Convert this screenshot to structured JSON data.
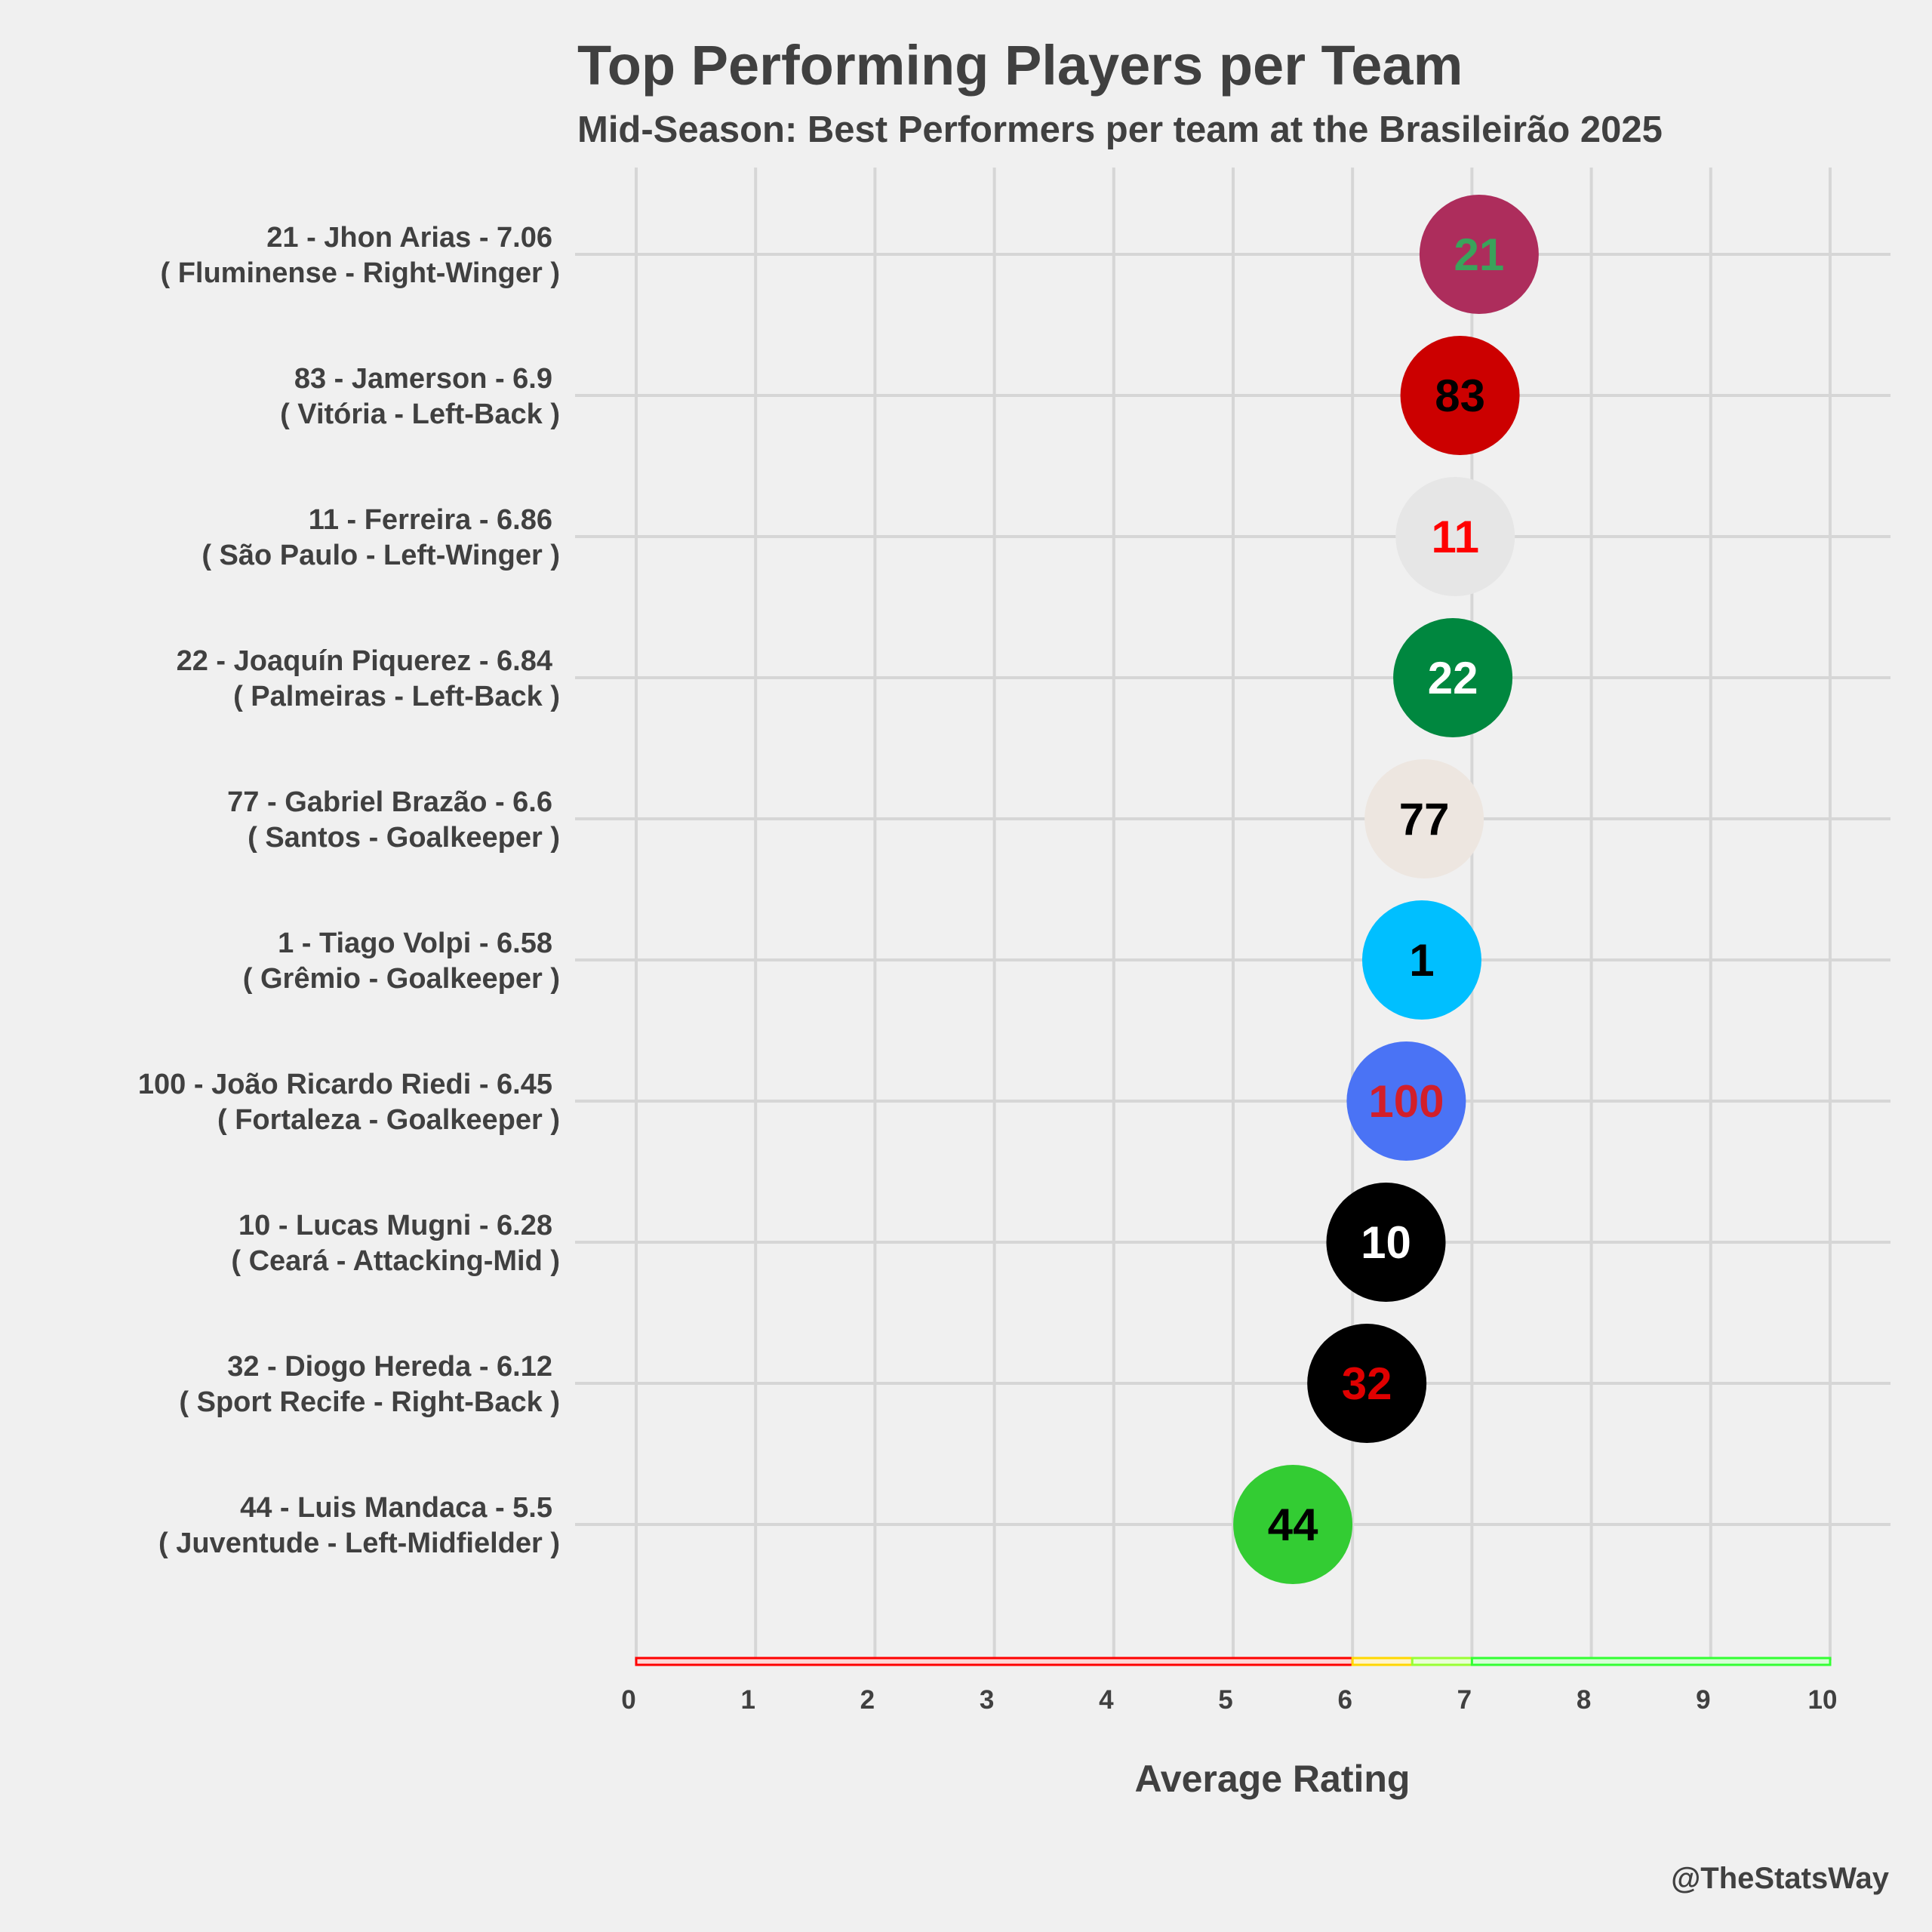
{
  "chart_data": {
    "type": "scatter",
    "title": "Top Performing Players per Team",
    "subtitle": "Mid-Season: Best Performers per team at the Brasileirão 2025",
    "xlabel": "Average Rating",
    "ylabel": "",
    "xlim": [
      0,
      10
    ],
    "xticks": [
      "0",
      "1",
      "2",
      "3",
      "4",
      "5",
      "6",
      "7",
      "8",
      "9",
      "10"
    ],
    "grid": true,
    "credit": "@TheStatsWay",
    "players": [
      {
        "number": "21",
        "line1": "21 - Jhon Arias - 7.06",
        "line2": "( Fluminense - Right-Winger )",
        "rating": 7.06,
        "color": "#ad2d5c",
        "text_color": "#3aa35b"
      },
      {
        "number": "83",
        "line1": "83 - Jamerson - 6.9",
        "line2": "( Vitória - Left-Back )",
        "rating": 6.9,
        "color": "#cc0000",
        "text_color": "#000000"
      },
      {
        "number": "11",
        "line1": "11 - Ferreira - 6.86",
        "line2": "( São Paulo - Left-Winger )",
        "rating": 6.86,
        "color": "#e6e6e6",
        "text_color": "#ff0000"
      },
      {
        "number": "22",
        "line1": "22 - Joaquín Piquerez - 6.84",
        "line2": "( Palmeiras - Left-Back )",
        "rating": 6.84,
        "color": "#00873f",
        "text_color": "#ffffff"
      },
      {
        "number": "77",
        "line1": "77 - Gabriel Brazão - 6.6",
        "line2": "( Santos - Goalkeeper )",
        "rating": 6.6,
        "color": "#ede6e0",
        "text_color": "#000000"
      },
      {
        "number": "1",
        "line1": "1 - Tiago Volpi - 6.58",
        "line2": "( Grêmio - Goalkeeper )",
        "rating": 6.58,
        "color": "#00bfff",
        "text_color": "#000000"
      },
      {
        "number": "100",
        "line1": "100 - João Ricardo Riedi - 6.45",
        "line2": "( Fortaleza - Goalkeeper )",
        "rating": 6.45,
        "color": "#4a73f5",
        "text_color": "#d21f2a"
      },
      {
        "number": "10",
        "line1": "10 - Lucas Mugni - 6.28",
        "line2": "( Ceará - Attacking-Mid )",
        "rating": 6.28,
        "color": "#000000",
        "text_color": "#ffffff"
      },
      {
        "number": "32",
        "line1": "32 - Diogo Hereda - 6.12",
        "line2": "( Sport Recife - Right-Back )",
        "rating": 6.12,
        "color": "#000000",
        "text_color": "#e00000"
      },
      {
        "number": "44",
        "line1": "44 - Luis Mandaca - 5.5",
        "line2": "( Juventude - Left-Midfielder )",
        "rating": 5.5,
        "color": "#33cc33",
        "text_color": "#000000"
      }
    ],
    "rating_bands": [
      {
        "from": 0,
        "to": 6,
        "color": "#ff0000",
        "fill": "#ffd6d6"
      },
      {
        "from": 6,
        "to": 6.5,
        "color": "#ffd700",
        "fill": "#fff5cc"
      },
      {
        "from": 6.5,
        "to": 7,
        "color": "#99ff33",
        "fill": "#eaffd6"
      },
      {
        "from": 7,
        "to": 10,
        "color": "#33ff33",
        "fill": "#d6ffd6"
      }
    ]
  }
}
